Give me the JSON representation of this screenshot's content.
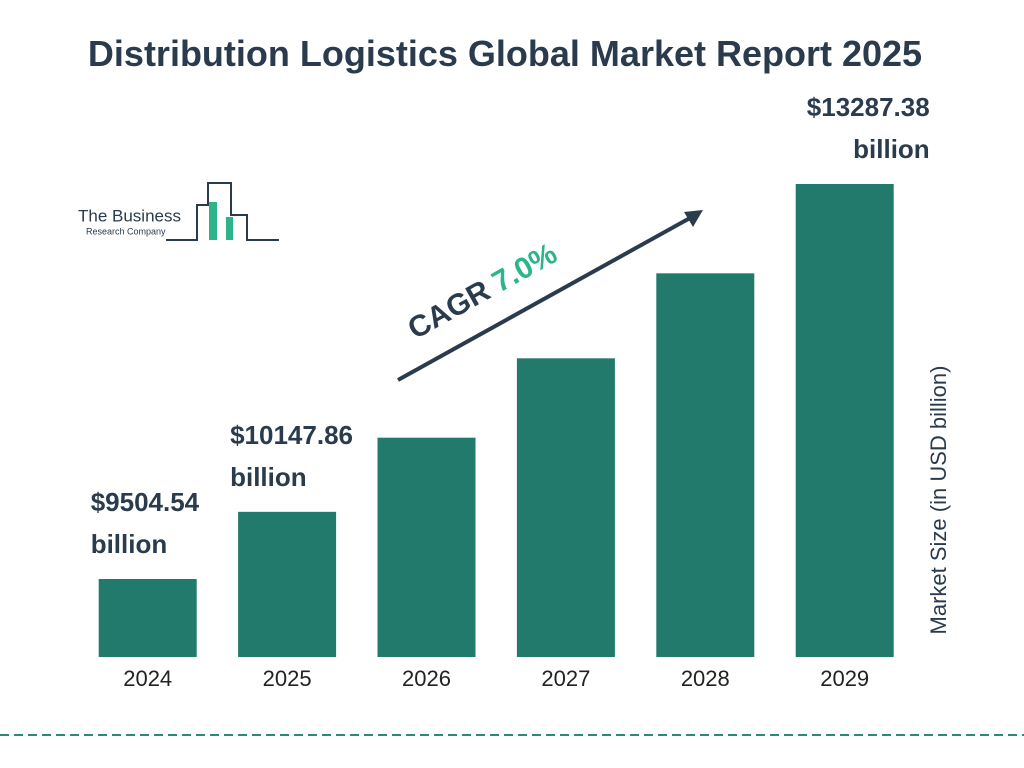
{
  "chart_data": {
    "type": "bar",
    "title": "Distribution Logistics Global Market Report 2025",
    "categories": [
      "2024",
      "2025",
      "2026",
      "2027",
      "2028",
      "2029"
    ],
    "values": [
      9504.54,
      10147.86,
      10858,
      11618,
      12432,
      13287.38
    ],
    "value_labels": [
      "$9504.54 billion",
      "$10147.86 billion",
      null,
      null,
      null,
      "$13287.38 billion"
    ],
    "color": "#217a6b",
    "y_label": "Market Size (in USD billion)",
    "annotation": {
      "label": "CAGR",
      "value": "7.0%"
    },
    "logo": {
      "name": "The Business",
      "tagline": "Research Company"
    }
  }
}
